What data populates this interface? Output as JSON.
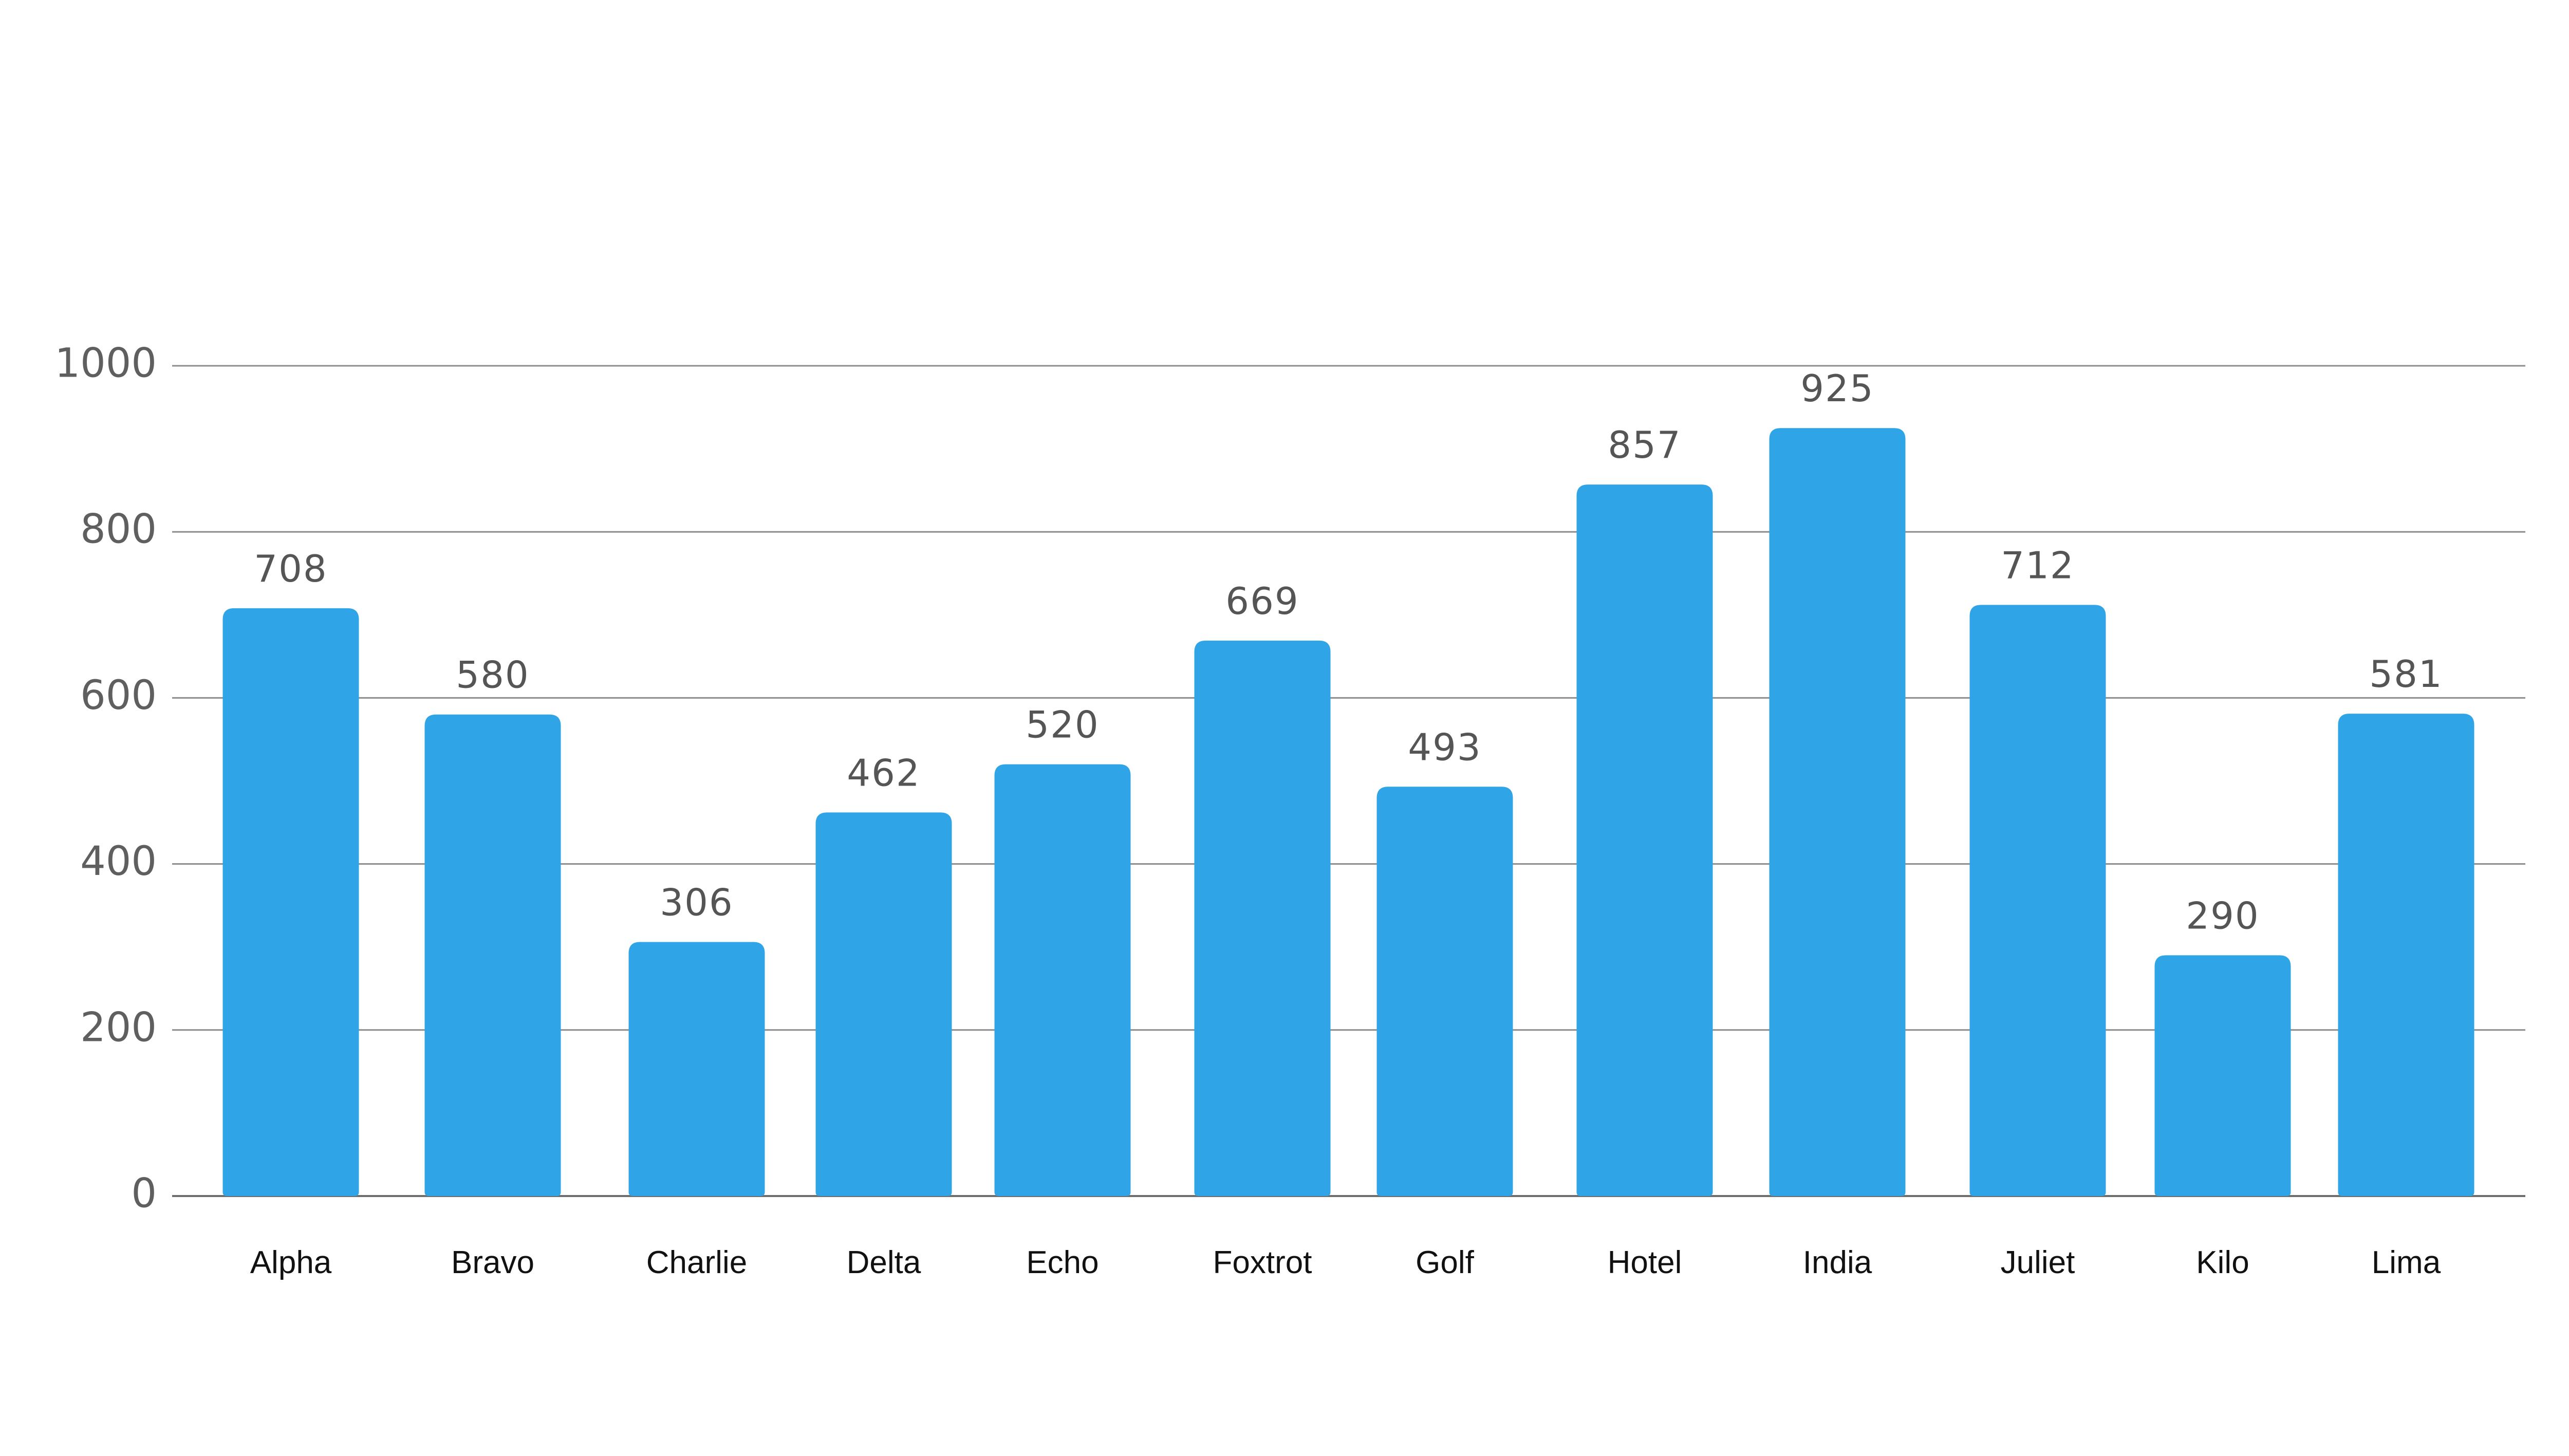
{
  "chart_data": {
    "type": "bar",
    "categories": [
      "Alpha",
      "Bravo",
      "Charlie",
      "Delta",
      "Echo",
      "Foxtrot",
      "Golf",
      "Hotel",
      "India",
      "Juliet",
      "Kilo",
      "Lima"
    ],
    "values": [
      708,
      580,
      306,
      462,
      520,
      669,
      493,
      857,
      925,
      712,
      290,
      581
    ],
    "y_ticks": [
      0,
      200,
      400,
      600,
      800,
      1000
    ],
    "ylim": [
      0,
      1000
    ],
    "grid": true,
    "bar_color": "#2fa4e7",
    "gridline_color": "#8c8c8c",
    "legend": "none"
  }
}
